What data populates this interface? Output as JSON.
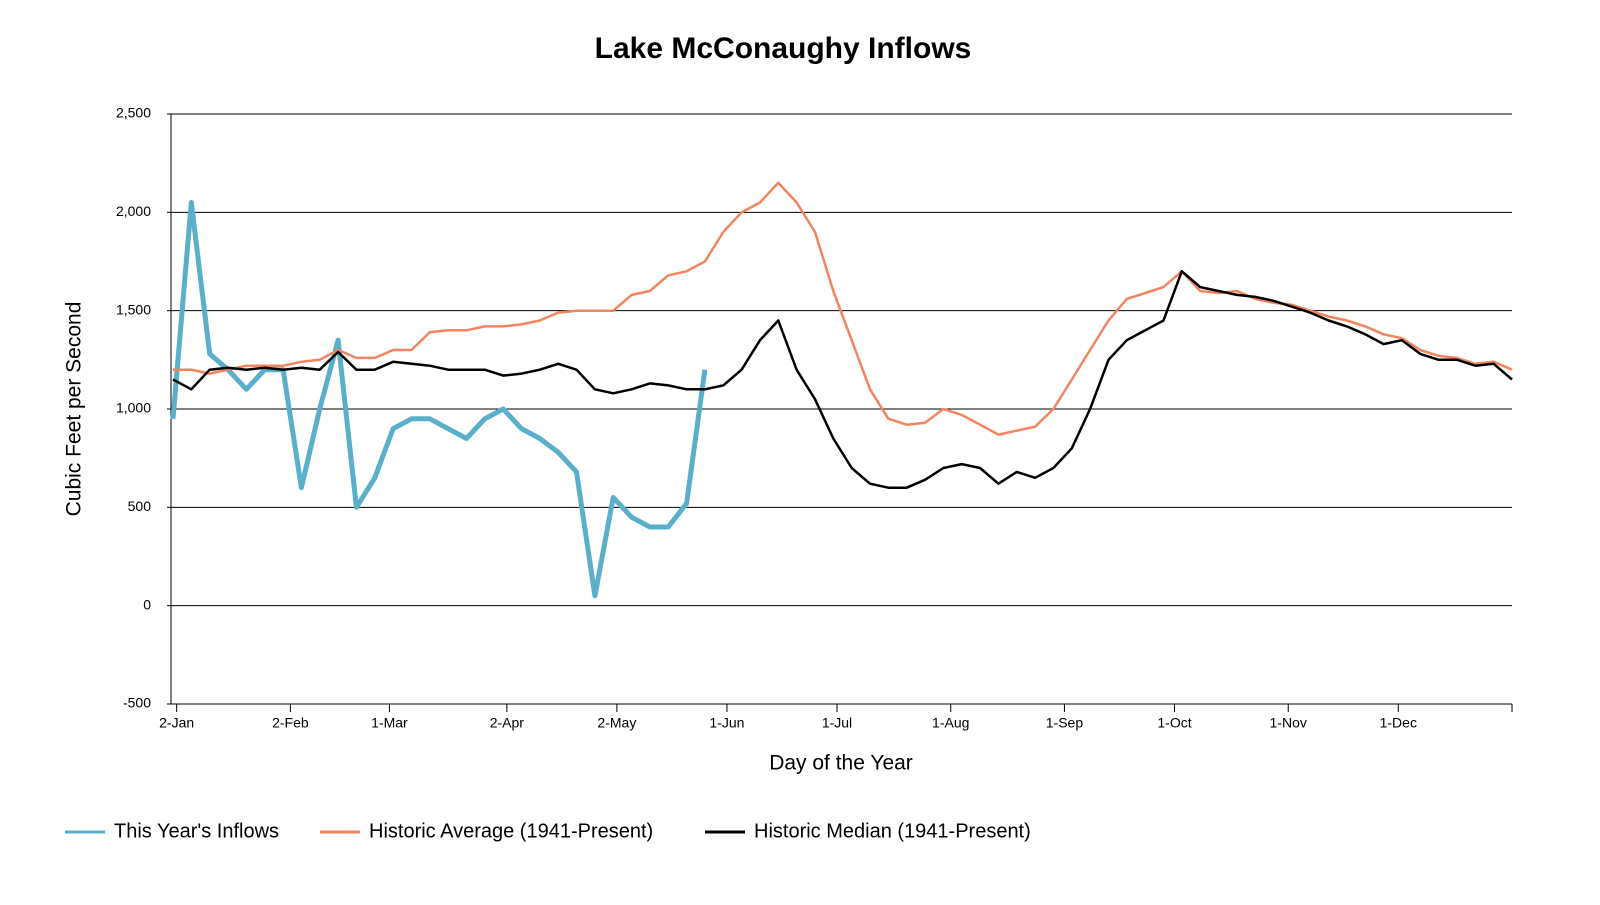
{
  "chart_data": {
    "type": "line",
    "title": "Lake McConaughy Inflows",
    "xlabel": "Day of the Year",
    "ylabel": "Cubic Feet per Second",
    "x": [
      1,
      6,
      11,
      16,
      21,
      26,
      31,
      36,
      41,
      46,
      51,
      56,
      61,
      66,
      71,
      76,
      81,
      86,
      91,
      96,
      101,
      106,
      111,
      116,
      121,
      126,
      131,
      136,
      141,
      146,
      151,
      156,
      161,
      166,
      171,
      176,
      181,
      186,
      191,
      196,
      201,
      206,
      211,
      216,
      221,
      226,
      231,
      236,
      241,
      246,
      251,
      256,
      261,
      266,
      271,
      276,
      281,
      286,
      291,
      296,
      301,
      306,
      311,
      316,
      321,
      326,
      331,
      336,
      341,
      346,
      351,
      356,
      361,
      366
    ],
    "xlim": [
      1,
      366
    ],
    "xticks": [
      {
        "value": 2,
        "label": "2-Jan"
      },
      {
        "value": 33,
        "label": "2-Feb"
      },
      {
        "value": 60,
        "label": "1-Mar"
      },
      {
        "value": 92,
        "label": "2-Apr"
      },
      {
        "value": 122,
        "label": "2-May"
      },
      {
        "value": 152,
        "label": "1-Jun"
      },
      {
        "value": 182,
        "label": "1-Jul"
      },
      {
        "value": 213,
        "label": "1-Aug"
      },
      {
        "value": 244,
        "label": "1-Sep"
      },
      {
        "value": 274,
        "label": "1-Oct"
      },
      {
        "value": 305,
        "label": "1-Nov"
      },
      {
        "value": 335,
        "label": "1-Dec"
      }
    ],
    "ylim": [
      -500,
      2500
    ],
    "yticks": [
      {
        "value": -500,
        "label": "-500"
      },
      0,
      500,
      {
        "value": 1000,
        "label": "1,000"
      },
      {
        "value": 1500,
        "label": "1,500"
      },
      {
        "value": 2000,
        "label": "2,000"
      },
      {
        "value": 2500,
        "label": "2,500"
      }
    ],
    "grid": true,
    "legend": "bottom",
    "series": [
      {
        "name": "This Year's Inflows",
        "color": "#5ab0cb",
        "width": 5,
        "values": [
          950,
          2050,
          1280,
          1200,
          1100,
          1200,
          1200,
          600,
          1000,
          1350,
          500,
          650,
          900,
          950,
          950,
          900,
          850,
          950,
          1000,
          900,
          850,
          780,
          680,
          50,
          550,
          450,
          400,
          400,
          520,
          1200,
          null,
          null,
          null,
          null,
          null,
          null,
          null,
          null,
          null,
          null,
          null,
          null,
          null,
          null,
          null,
          null,
          null,
          null,
          null,
          null,
          null,
          null,
          null,
          null,
          null,
          null,
          null,
          null,
          null,
          null,
          null,
          null,
          null,
          null,
          null,
          null,
          null,
          null,
          null,
          null,
          null,
          null,
          null,
          null
        ]
      },
      {
        "name": "Historic Average (1941-Present)",
        "color": "#f4845f",
        "width": 2.5,
        "values": [
          1200,
          1200,
          1180,
          1200,
          1220,
          1220,
          1220,
          1240,
          1250,
          1300,
          1260,
          1260,
          1300,
          1300,
          1390,
          1400,
          1400,
          1420,
          1420,
          1430,
          1450,
          1490,
          1500,
          1500,
          1500,
          1580,
          1600,
          1680,
          1700,
          1750,
          1900,
          2000,
          2050,
          2150,
          2050,
          1900,
          1600,
          1350,
          1100,
          950,
          920,
          930,
          1000,
          970,
          920,
          870,
          890,
          910,
          1000,
          1150,
          1300,
          1450,
          1560,
          1590,
          1620,
          1700,
          1600,
          1590,
          1600,
          1560,
          1540,
          1530,
          1500,
          1470,
          1450,
          1420,
          1380,
          1360,
          1300,
          1270,
          1260,
          1230,
          1240,
          1200
        ]
      },
      {
        "name": "Historic Median (1941-Present)",
        "color": "#000000",
        "width": 2.5,
        "values": [
          1150,
          1100,
          1200,
          1210,
          1200,
          1210,
          1200,
          1210,
          1200,
          1290,
          1200,
          1200,
          1240,
          1230,
          1220,
          1200,
          1200,
          1200,
          1170,
          1180,
          1200,
          1230,
          1200,
          1100,
          1080,
          1100,
          1130,
          1120,
          1100,
          1100,
          1120,
          1200,
          1350,
          1450,
          1200,
          1050,
          850,
          700,
          620,
          600,
          600,
          640,
          700,
          720,
          700,
          620,
          680,
          650,
          700,
          800,
          1000,
          1250,
          1350,
          1400,
          1450,
          1700,
          1620,
          1600,
          1580,
          1570,
          1550,
          1520,
          1490,
          1450,
          1420,
          1380,
          1330,
          1350,
          1280,
          1250,
          1250,
          1220,
          1230,
          1150
        ]
      }
    ]
  }
}
